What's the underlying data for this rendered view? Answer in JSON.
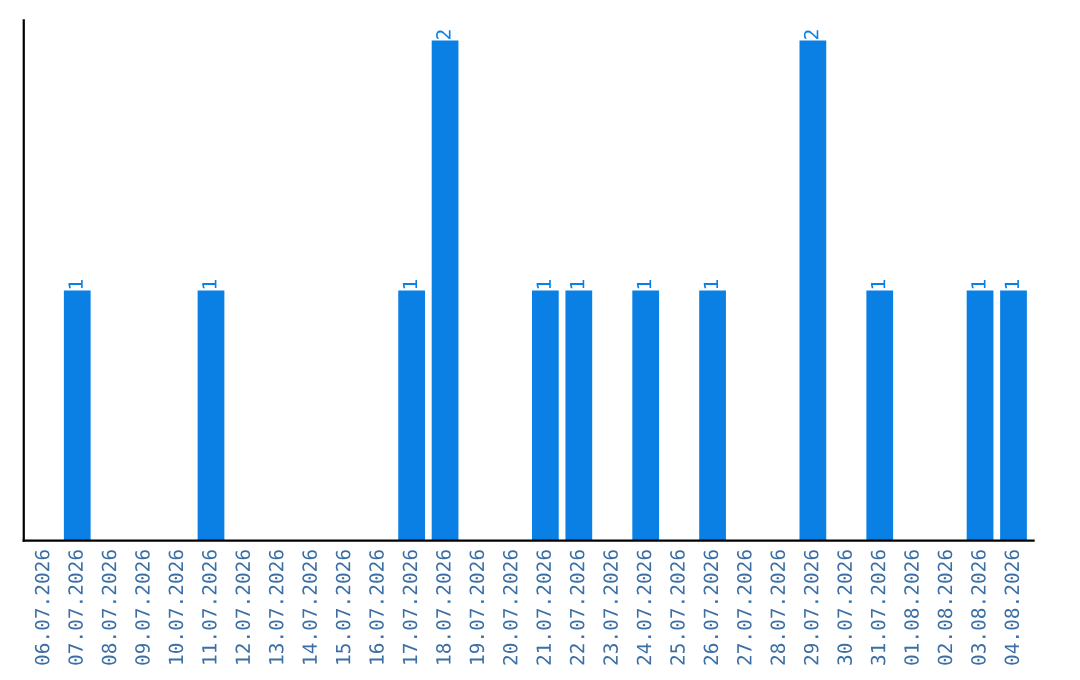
{
  "chart_data": {
    "type": "bar",
    "categories": [
      "06.07.2026",
      "07.07.2026",
      "08.07.2026",
      "09.07.2026",
      "10.07.2026",
      "11.07.2026",
      "12.07.2026",
      "13.07.2026",
      "14.07.2026",
      "15.07.2026",
      "16.07.2026",
      "17.07.2026",
      "18.07.2026",
      "19.07.2026",
      "20.07.2026",
      "21.07.2026",
      "22.07.2026",
      "23.07.2026",
      "24.07.2026",
      "25.07.2026",
      "26.07.2026",
      "27.07.2026",
      "28.07.2026",
      "29.07.2026",
      "30.07.2026",
      "31.07.2026",
      "01.08.2026",
      "02.08.2026",
      "03.08.2026",
      "04.08.2026"
    ],
    "values": [
      0,
      1,
      0,
      0,
      0,
      1,
      0,
      0,
      0,
      0,
      0,
      1,
      2,
      0,
      0,
      1,
      1,
      0,
      1,
      0,
      1,
      0,
      0,
      2,
      0,
      1,
      0,
      0,
      1,
      1
    ],
    "value_labels": [
      null,
      "1",
      null,
      null,
      null,
      "1",
      null,
      null,
      null,
      null,
      null,
      "1",
      "2",
      null,
      null,
      "1",
      "1",
      null,
      "1",
      null,
      "1",
      null,
      null,
      "2",
      null,
      "1",
      null,
      null,
      "1",
      "1"
    ],
    "color": "#0a80e4",
    "tick_labels": "x",
    "grid": false,
    "legend": false
  }
}
